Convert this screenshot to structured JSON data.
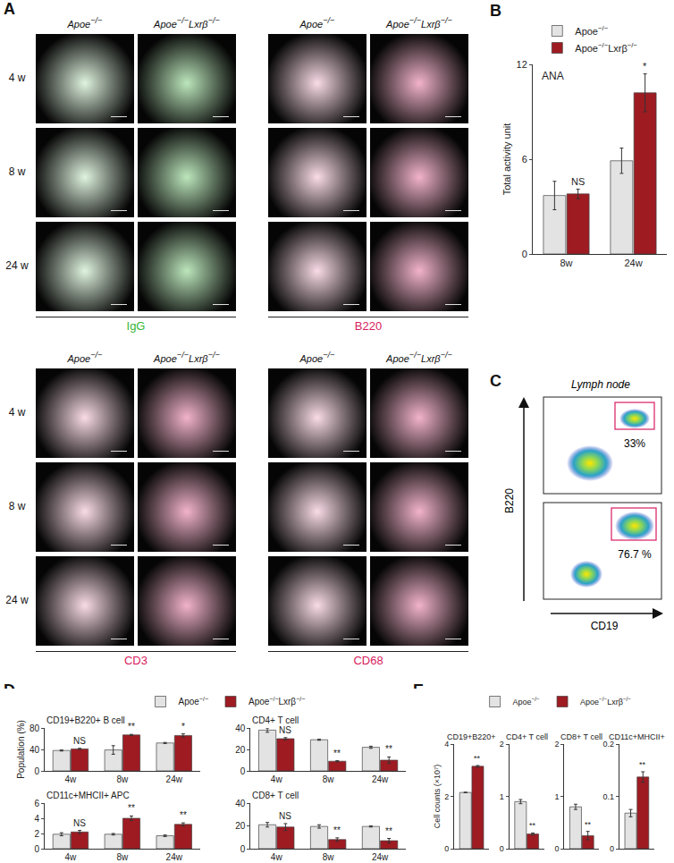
{
  "panel_labels": [
    "A",
    "B",
    "C",
    "D",
    "E"
  ],
  "micrographs": [
    {
      "columns": [
        "Apoe−/−",
        "Apoe−/−Lxrβ−/−"
      ],
      "rows": [
        "4 w",
        "8 w",
        "24 w"
      ],
      "stains": [
        {
          "name": "IgG",
          "color": "#35b535"
        },
        {
          "name": "B220",
          "color": "#d81b60"
        }
      ]
    },
    {
      "columns": [
        "Apoe−/−",
        "Apoe−/−Lxrβ−/−"
      ],
      "rows": [
        "4 w",
        "8 w",
        "24 w"
      ],
      "stains": [
        {
          "name": "CD3",
          "color": "#d81b60"
        },
        {
          "name": "CD68",
          "color": "#d81b60"
        }
      ]
    }
  ],
  "flow": {
    "title": "Lymph node",
    "x_label": "CD19",
    "y_label": "B220",
    "gates": [
      "33%",
      "76.7 %"
    ]
  },
  "chart_data": [
    {
      "type": "bar",
      "title": "ANA",
      "ylabel": "Total activity unit",
      "categories": [
        "8w",
        "24w"
      ],
      "series": [
        {
          "name": "Apoe−/−",
          "color": "#e3e3e3",
          "values": [
            3.7,
            5.9
          ],
          "errors": [
            0.9,
            0.8
          ]
        },
        {
          "name": "Apoe−/−Lxrβ−/−",
          "color": "#9e1b22",
          "values": [
            3.8,
            10.2
          ],
          "errors": [
            0.3,
            1.2
          ]
        }
      ],
      "annotations": [
        "NS",
        "*"
      ],
      "ylim": [
        0,
        12
      ],
      "yticks": [
        0,
        6,
        12
      ],
      "legend": "top"
    },
    {
      "type": "bar",
      "title": "CD19+B220+ B cell",
      "ylabel": "Population (%)",
      "categories": [
        "4w",
        "8w",
        "24w"
      ],
      "series": [
        {
          "name": "Apoe−/−",
          "color": "#e3e3e3",
          "values": [
            38,
            39,
            52
          ],
          "errors": [
            1,
            8,
            1
          ]
        },
        {
          "name": "Apoe−/−Lxrβ−/−",
          "color": "#9e1b22",
          "values": [
            41,
            67,
            66
          ],
          "errors": [
            1,
            1,
            3
          ]
        }
      ],
      "annotations": [
        "NS",
        "**",
        "*"
      ],
      "ylim": [
        0,
        80
      ],
      "yticks": [
        0,
        40,
        80
      ],
      "legend": "top"
    },
    {
      "type": "bar",
      "title": "CD4+ T cell",
      "categories": [
        "4w",
        "8w",
        "24w"
      ],
      "series": [
        {
          "name": "Apoe−/−",
          "color": "#e3e3e3",
          "values": [
            38,
            29,
            22
          ],
          "errors": [
            2,
            0.5,
            1
          ]
        },
        {
          "name": "Apoe−/−Lxrβ−/−",
          "color": "#9e1b22",
          "values": [
            30,
            9,
            10
          ],
          "errors": [
            1,
            0.5,
            3
          ]
        }
      ],
      "annotations": [
        "NS",
        "**",
        "**"
      ],
      "ylim": [
        0,
        40
      ],
      "yticks": [
        0,
        20,
        40
      ]
    },
    {
      "type": "bar",
      "title": "CD11c+MHCII+ APC",
      "categories": [
        "4w",
        "8w",
        "24w"
      ],
      "series": [
        {
          "name": "Apoe−/−",
          "color": "#e3e3e3",
          "values": [
            1.9,
            1.9,
            1.7
          ],
          "errors": [
            0.2,
            0.1,
            0.1
          ]
        },
        {
          "name": "Apoe−/−Lxrβ−/−",
          "color": "#9e1b22",
          "values": [
            2.2,
            4.0,
            3.2
          ],
          "errors": [
            0.2,
            0.3,
            0.2
          ]
        }
      ],
      "annotations": [
        "NS",
        "**",
        "**"
      ],
      "ylim": [
        0,
        6
      ],
      "yticks": [
        0,
        2,
        4,
        6
      ]
    },
    {
      "type": "bar",
      "title": "CD8+ T cell",
      "categories": [
        "4w",
        "8w",
        "24w"
      ],
      "series": [
        {
          "name": "Apoe−/−",
          "color": "#e3e3e3",
          "values": [
            21,
            19.5,
            19.5
          ],
          "errors": [
            2,
            1.5,
            0.5
          ]
        },
        {
          "name": "Apoe−/−Lxrβ−/−",
          "color": "#9e1b22",
          "values": [
            19,
            8,
            7
          ],
          "errors": [
            3,
            1.5,
            2
          ]
        }
      ],
      "annotations": [
        "NS",
        "**",
        "**"
      ],
      "ylim": [
        0,
        40
      ],
      "yticks": [
        0,
        20,
        40
      ]
    },
    {
      "type": "bar",
      "title": "CD19+B220+",
      "ylabel": "Cell counts (×10⁷)",
      "categories": [
        null
      ],
      "series": [
        {
          "name": "Apoe−/−",
          "color": "#e3e3e3",
          "values": [
            2.15
          ],
          "errors": [
            0.01
          ]
        },
        {
          "name": "Apoe−/−Lxrβ−/−",
          "color": "#9e1b22",
          "values": [
            3.15
          ],
          "errors": [
            0.03
          ]
        }
      ],
      "annotations": [
        "**"
      ],
      "ylim": [
        0,
        4
      ],
      "yticks": [
        0,
        2,
        4
      ],
      "legend": "top"
    },
    {
      "type": "bar",
      "title": "CD4+ T cell",
      "categories": [
        null
      ],
      "series": [
        {
          "name": "Apoe−/−",
          "color": "#e3e3e3",
          "values": [
            0.9
          ],
          "errors": [
            0.04
          ]
        },
        {
          "name": "Apoe−/−Lxrβ−/−",
          "color": "#9e1b22",
          "values": [
            0.28
          ],
          "errors": [
            0.02
          ]
        }
      ],
      "annotations": [
        "**"
      ],
      "ylim": [
        0,
        2
      ],
      "yticks": [
        0,
        1,
        2
      ]
    },
    {
      "type": "bar",
      "title": "CD8+ T cell",
      "categories": [
        null
      ],
      "series": [
        {
          "name": "Apoe−/−",
          "color": "#e3e3e3",
          "values": [
            0.8
          ],
          "errors": [
            0.05
          ]
        },
        {
          "name": "Apoe−/−Lxrβ−/−",
          "color": "#9e1b22",
          "values": [
            0.25
          ],
          "errors": [
            0.08
          ]
        }
      ],
      "annotations": [
        "**"
      ],
      "ylim": [
        0,
        2
      ],
      "yticks": [
        0,
        1,
        2
      ]
    },
    {
      "type": "bar",
      "title": "CD11c+MHCII+",
      "categories": [
        null
      ],
      "series": [
        {
          "name": "Apoe−/−",
          "color": "#e3e3e3",
          "values": [
            0.068
          ],
          "errors": [
            0.007
          ]
        },
        {
          "name": "Apoe−/−Lxrβ−/−",
          "color": "#9e1b22",
          "values": [
            0.137
          ],
          "errors": [
            0.01
          ]
        }
      ],
      "annotations": [
        "**"
      ],
      "ylim": [
        0,
        0.2
      ],
      "yticks": [
        0,
        0.1,
        0.2
      ]
    }
  ]
}
